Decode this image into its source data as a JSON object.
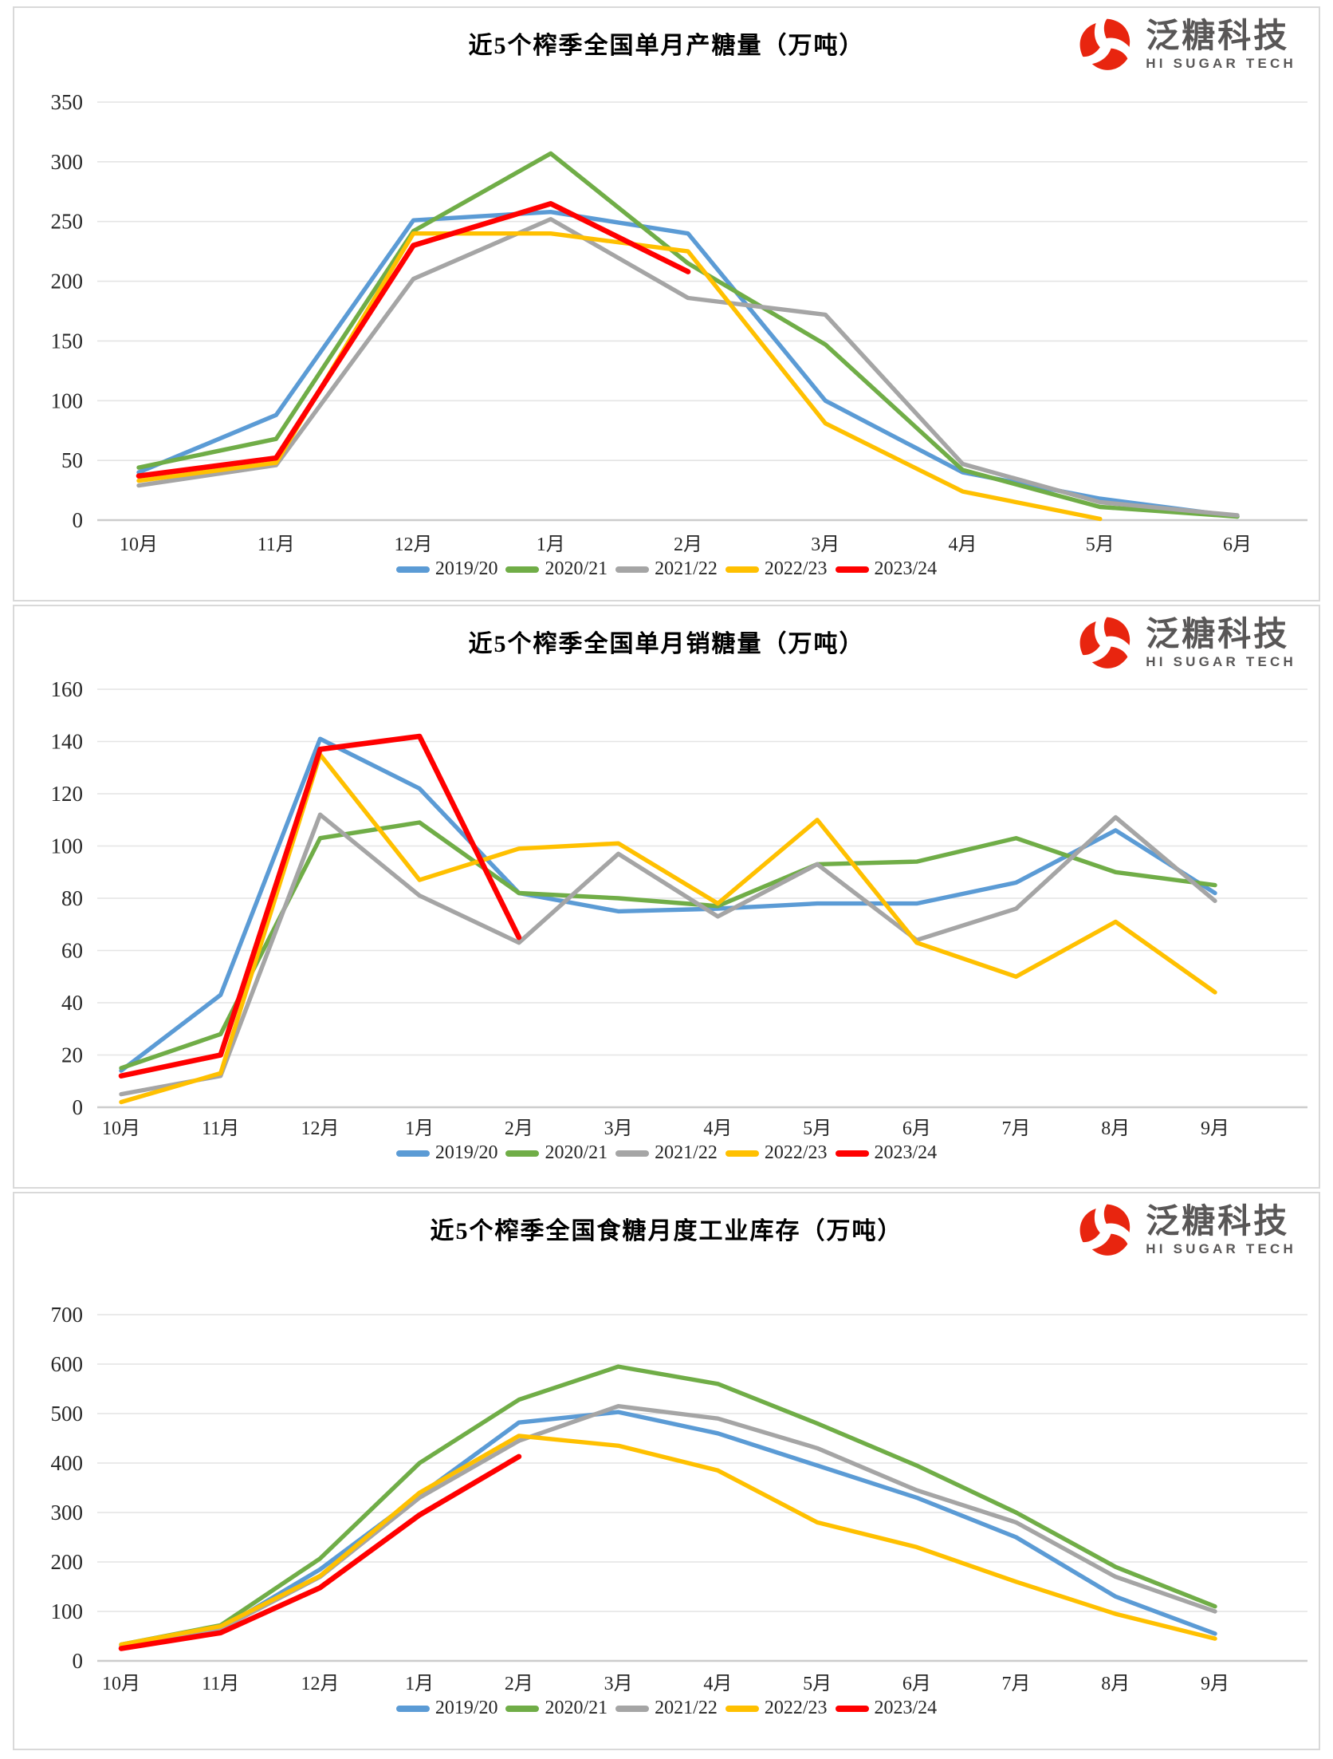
{
  "logo": {
    "name": "泛糖科技",
    "subtitle": "HI SUGAR TECH",
    "accent_color": "#e8250f",
    "text_color": "#595757"
  },
  "palette": {
    "gridline": "#e4e4e4",
    "axis_line": "#cccccc",
    "tick_text": "#262626"
  },
  "chart_data": [
    {
      "type": "line",
      "title": "近5个榨季全国单月产糖量（万吨）",
      "categories": [
        "10月",
        "11月",
        "12月",
        "1月",
        "2月",
        "3月",
        "4月",
        "5月",
        "6月"
      ],
      "ylim": [
        0,
        350
      ],
      "ytick_step": 50,
      "grid": true,
      "legend_position": "bottom",
      "series": [
        {
          "name": "2019/20",
          "color": "#5B9BD5",
          "emphasis": false,
          "values": [
            40,
            88,
            251,
            258,
            240,
            100,
            40,
            18,
            3
          ]
        },
        {
          "name": "2020/21",
          "color": "#70AD47",
          "emphasis": false,
          "values": [
            44,
            68,
            242,
            307,
            215,
            147,
            42,
            11,
            3
          ]
        },
        {
          "name": "2021/22",
          "color": "#A5A5A5",
          "emphasis": false,
          "values": [
            29,
            46,
            202,
            252,
            186,
            172,
            47,
            15,
            4
          ]
        },
        {
          "name": "2022/23",
          "color": "#FFC000",
          "emphasis": false,
          "values": [
            33,
            48,
            240,
            240,
            225,
            81,
            24,
            1,
            null
          ]
        },
        {
          "name": "2023/24",
          "color": "#FF0000",
          "emphasis": true,
          "values": [
            37,
            52,
            230,
            265,
            208,
            null,
            null,
            null,
            null
          ]
        }
      ]
    },
    {
      "type": "line",
      "title": "近5个榨季全国单月销糖量（万吨）",
      "categories": [
        "10月",
        "11月",
        "12月",
        "1月",
        "2月",
        "3月",
        "4月",
        "5月",
        "6月",
        "7月",
        "8月",
        "9月"
      ],
      "ylim": [
        0,
        160
      ],
      "ytick_step": 20,
      "grid": true,
      "legend_position": "bottom",
      "series": [
        {
          "name": "2019/20",
          "color": "#5B9BD5",
          "emphasis": false,
          "values": [
            14,
            43,
            141,
            122,
            82,
            75,
            76,
            78,
            78,
            86,
            106,
            82
          ]
        },
        {
          "name": "2020/21",
          "color": "#70AD47",
          "emphasis": false,
          "values": [
            15,
            28,
            103,
            109,
            82,
            80,
            77,
            93,
            94,
            103,
            90,
            85
          ]
        },
        {
          "name": "2021/22",
          "color": "#A5A5A5",
          "emphasis": false,
          "values": [
            5,
            12,
            112,
            81,
            63,
            97,
            73,
            93,
            64,
            76,
            111,
            79
          ]
        },
        {
          "name": "2022/23",
          "color": "#FFC000",
          "emphasis": false,
          "values": [
            2,
            13,
            135,
            87,
            99,
            101,
            78,
            110,
            63,
            50,
            71,
            44
          ]
        },
        {
          "name": "2023/24",
          "color": "#FF0000",
          "emphasis": true,
          "values": [
            12,
            20,
            137,
            142,
            65,
            null,
            null,
            null,
            null,
            null,
            null,
            null
          ]
        }
      ]
    },
    {
      "type": "line",
      "title": "近5个榨季全国食糖月度工业库存（万吨）",
      "categories": [
        "10月",
        "11月",
        "12月",
        "1月",
        "2月",
        "3月",
        "4月",
        "5月",
        "6月",
        "7月",
        "8月",
        "9月"
      ],
      "ylim": [
        0,
        700
      ],
      "ytick_step": 100,
      "grid": true,
      "legend_position": "bottom",
      "series": [
        {
          "name": "2019/20",
          "color": "#5B9BD5",
          "emphasis": false,
          "values": [
            30,
            65,
            185,
            335,
            482,
            503,
            460,
            395,
            330,
            250,
            130,
            55
          ]
        },
        {
          "name": "2020/21",
          "color": "#70AD47",
          "emphasis": false,
          "values": [
            33,
            72,
            207,
            400,
            528,
            595,
            560,
            480,
            395,
            300,
            190,
            110
          ]
        },
        {
          "name": "2021/22",
          "color": "#A5A5A5",
          "emphasis": false,
          "values": [
            30,
            65,
            170,
            330,
            445,
            515,
            490,
            430,
            345,
            280,
            170,
            100
          ]
        },
        {
          "name": "2022/23",
          "color": "#FFC000",
          "emphasis": false,
          "values": [
            33,
            70,
            172,
            340,
            455,
            435,
            385,
            280,
            230,
            160,
            95,
            45
          ]
        },
        {
          "name": "2023/24",
          "color": "#FF0000",
          "emphasis": true,
          "values": [
            25,
            57,
            148,
            295,
            413,
            null,
            null,
            null,
            null,
            null,
            null,
            null
          ]
        }
      ]
    }
  ]
}
